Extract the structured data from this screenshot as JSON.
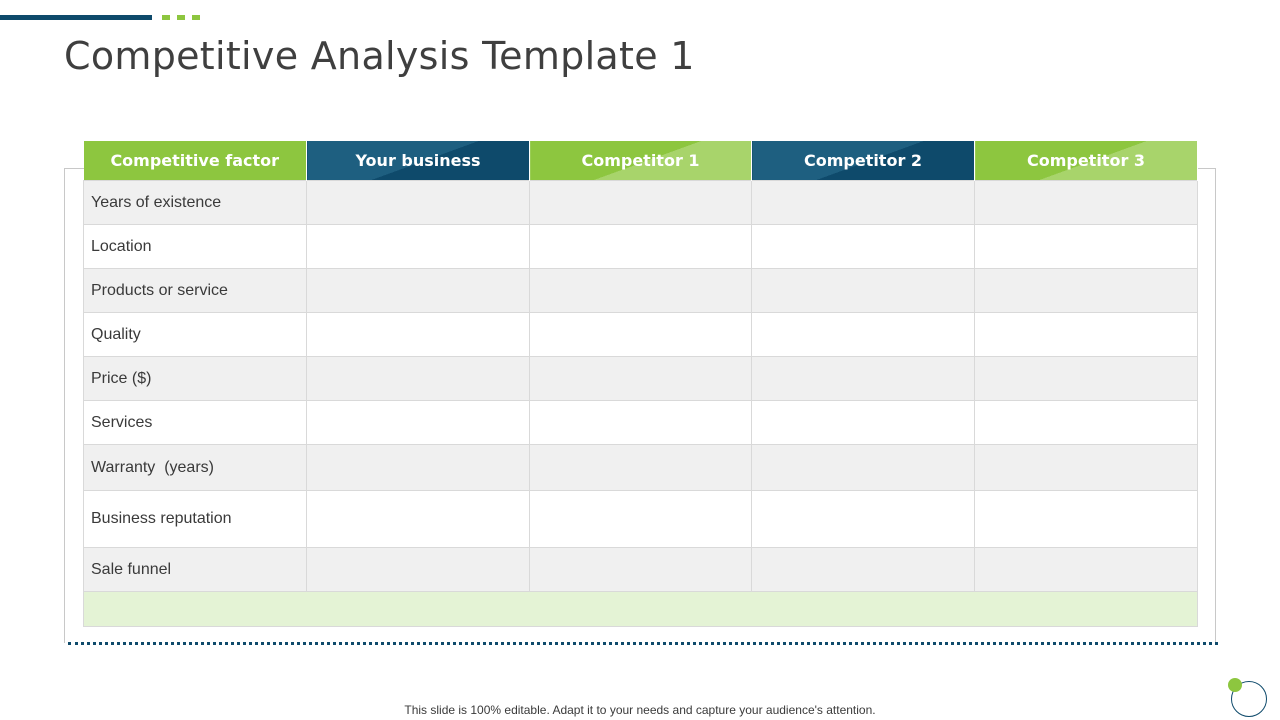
{
  "slide": {
    "title": "Competitive Analysis Template 1",
    "footnote": "This slide is 100% editable. Adapt it to your needs and capture your audience's attention."
  },
  "colors": {
    "accent_green": "#8dc63f",
    "accent_blue": "#0e4a6b",
    "row_shade": "#f0f0f0",
    "footer_row": "#e4f3d5"
  },
  "table": {
    "headers": [
      "Competitive factor",
      "Your business",
      "Competitor 1",
      "Competitor 2",
      "Competitor 3"
    ],
    "rows": [
      "Years of existence",
      "Location",
      "Products or service",
      "Quality",
      "Price ($)",
      "Services",
      "Warranty  (years)",
      "Business reputation",
      "Sale funnel"
    ]
  }
}
